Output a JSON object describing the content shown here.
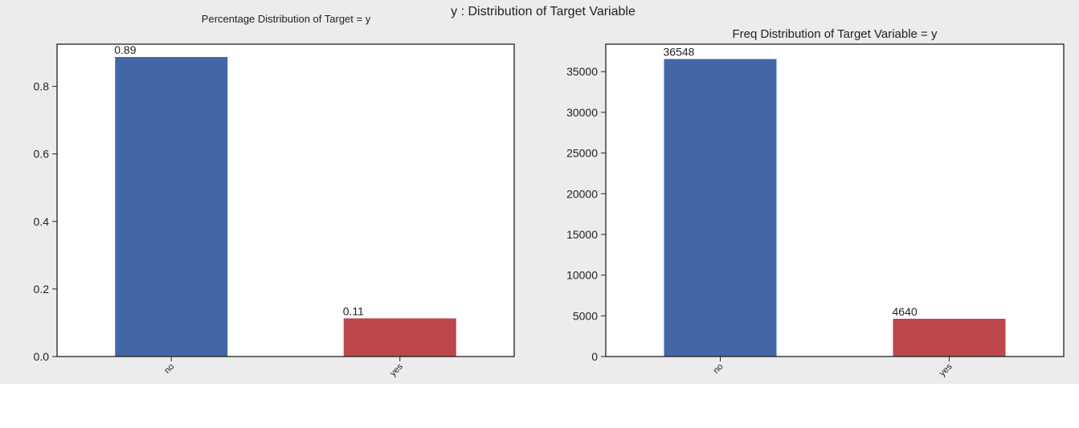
{
  "suptitle": "y : Distribution of Target Variable",
  "chart_data": [
    {
      "type": "bar",
      "title": "Percentage Distribution of Target = y",
      "categories": [
        "no",
        "yes"
      ],
      "values": [
        0.887,
        0.113
      ],
      "value_labels": [
        "0.89",
        "0.11"
      ],
      "colors": [
        "#4367a6",
        "#bd464a"
      ],
      "ylim": [
        0,
        0.925
      ],
      "yticks": [
        0.0,
        0.2,
        0.4,
        0.6,
        0.8
      ],
      "ytick_labels": [
        "0.0",
        "0.2",
        "0.4",
        "0.6",
        "0.8"
      ],
      "xlabel": "",
      "ylabel": "",
      "grid": false,
      "legend": "none"
    },
    {
      "type": "bar",
      "title": "Freq Distribution of Target Variable = y",
      "categories": [
        "no",
        "yes"
      ],
      "values": [
        36548,
        4640
      ],
      "value_labels": [
        "36548",
        "4640"
      ],
      "colors": [
        "#4367a6",
        "#bd464a"
      ],
      "ylim": [
        0,
        38375
      ],
      "yticks": [
        0,
        5000,
        10000,
        15000,
        20000,
        25000,
        30000,
        35000
      ],
      "ytick_labels": [
        "0",
        "5000",
        "10000",
        "15000",
        "20000",
        "25000",
        "30000",
        "35000"
      ],
      "xlabel": "",
      "ylabel": "",
      "grid": false,
      "legend": "none"
    }
  ]
}
